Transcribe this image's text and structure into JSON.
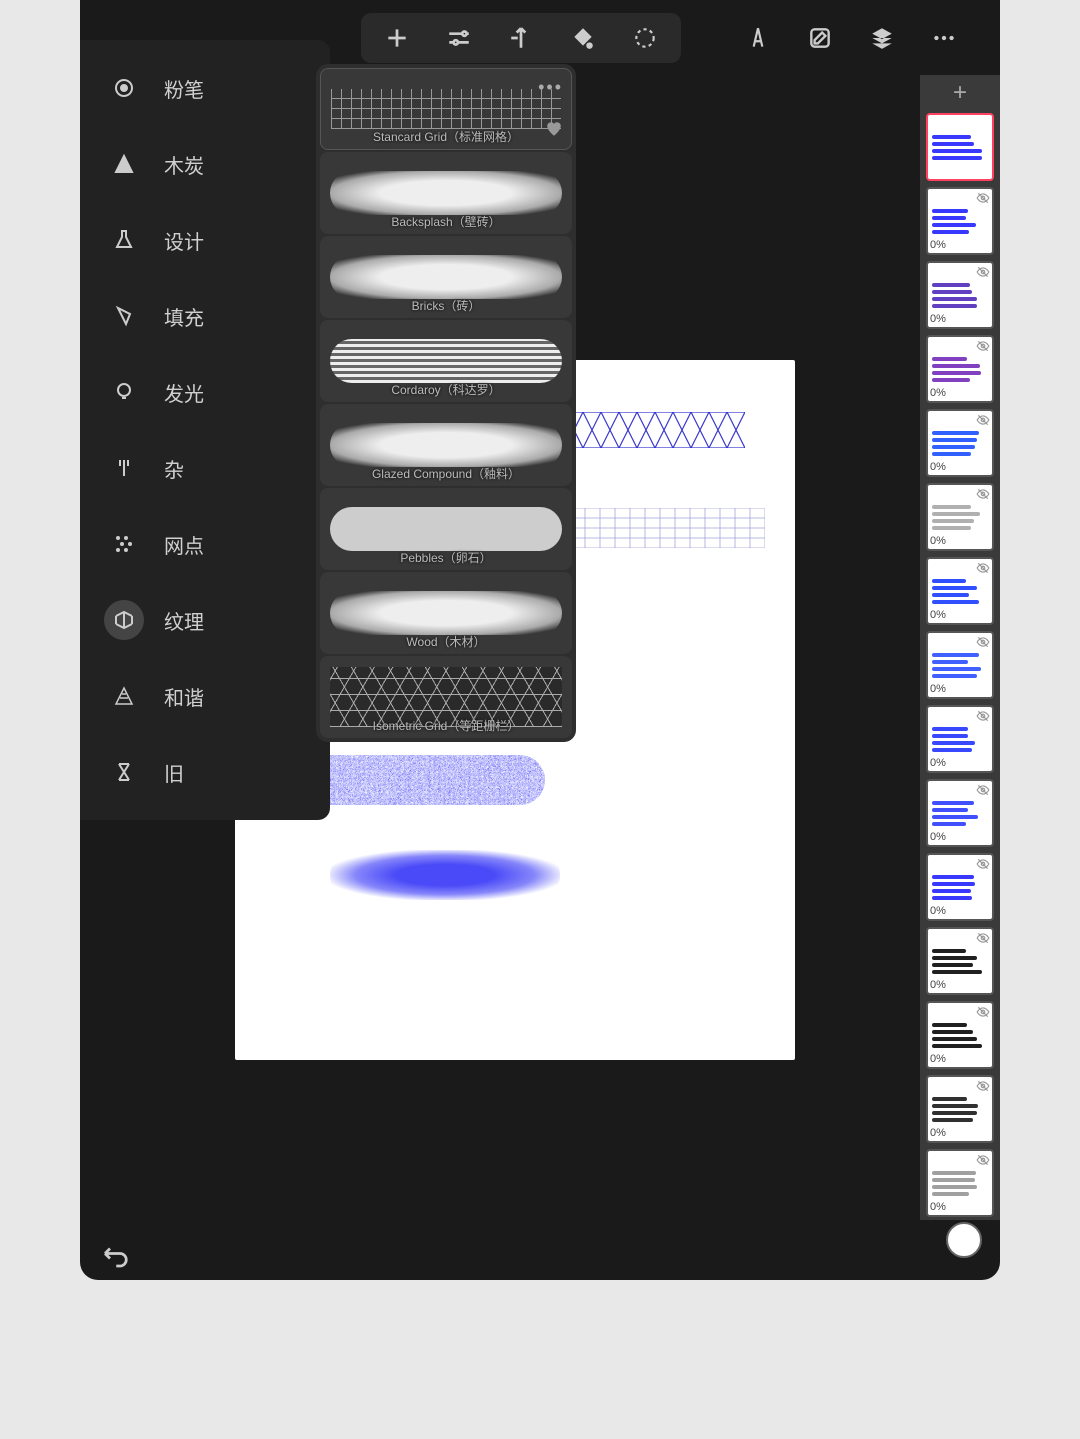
{
  "colors": {
    "app_bg": "#1a1a1a",
    "panel_bg": "#2e2e2e",
    "canvas_bg": "#ffffff",
    "stroke_blue": "#3838ff",
    "thumb_active_border": "#ff4060",
    "icon_color": "#cccccc"
  },
  "toolbar": {
    "center_tools": [
      "add",
      "sliders",
      "transform",
      "fill",
      "select"
    ],
    "right_tools": [
      "compass",
      "edit",
      "layers",
      "more"
    ]
  },
  "categories": [
    {
      "icon": "circle-hole",
      "label": "粉笔"
    },
    {
      "icon": "triangle",
      "label": "木炭"
    },
    {
      "icon": "flask",
      "label": "设计"
    },
    {
      "icon": "bucket",
      "label": "填充"
    },
    {
      "icon": "bulb",
      "label": "发光"
    },
    {
      "icon": "fork",
      "label": "杂"
    },
    {
      "icon": "halftone",
      "label": "网点"
    },
    {
      "icon": "texture",
      "label": "纹理",
      "active": true
    },
    {
      "icon": "triangle-lines",
      "label": "和谐"
    },
    {
      "icon": "hourglass",
      "label": "旧"
    }
  ],
  "brushes": [
    {
      "label": "Stancard Grid（标准网格）",
      "type": "grid",
      "fav": true,
      "more": true
    },
    {
      "label": "Backsplash（壁砖）",
      "type": "cloud"
    },
    {
      "label": "Bricks（砖）",
      "type": "cloud"
    },
    {
      "label": "Cordaroy（科达罗）",
      "type": "lines"
    },
    {
      "label": "Glazed Compound（釉料）",
      "type": "cloud"
    },
    {
      "label": "Pebbles（卵石）",
      "type": "noise"
    },
    {
      "label": "Wood（木材）",
      "type": "cloud"
    },
    {
      "label": "Isometric Grid（等距栅栏）",
      "type": "iso"
    }
  ],
  "thumbnails": {
    "opacity_label": "0%",
    "items": [
      {
        "active": true,
        "color": "#3838ff",
        "show_opacity": false
      },
      {
        "color": "#3838ff"
      },
      {
        "color": "#6040c0"
      },
      {
        "color": "#8040c0"
      },
      {
        "color": "#3060ff"
      },
      {
        "color": "#b0b0b0"
      },
      {
        "color": "#3050ff"
      },
      {
        "color": "#4060ff"
      },
      {
        "color": "#3848ff"
      },
      {
        "color": "#4050ff"
      },
      {
        "color": "#3838ff"
      },
      {
        "color": "#202020"
      },
      {
        "color": "#202020"
      },
      {
        "color": "#303030"
      },
      {
        "color": "#a0a0a0"
      }
    ]
  },
  "misc": {
    "more_dots": "•••",
    "plus": "+"
  }
}
